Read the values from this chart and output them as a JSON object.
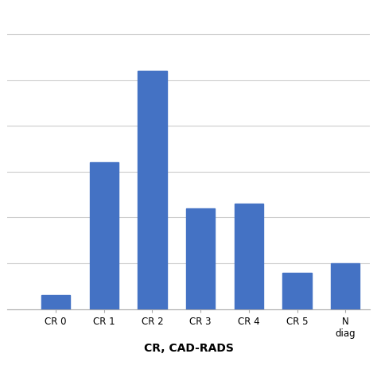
{
  "categories": [
    "CR 0",
    "CR 1",
    "CR 2",
    "CR 3",
    "CR 4",
    "CR 5",
    "N\ndiag"
  ],
  "values": [
    3,
    32,
    52,
    22,
    23,
    8,
    10
  ],
  "bar_color": "#4472C4",
  "xlabel": "CR, CAD-RADS",
  "xlabel_fontsize": 10,
  "xlabel_fontweight": "bold",
  "ylim": [
    0,
    65
  ],
  "yticks": [
    0,
    10,
    20,
    30,
    40,
    50,
    60
  ],
  "grid_color": "#CCCCCC",
  "background_color": "#FFFFFF",
  "bar_width": 0.6,
  "figsize": [
    4.74,
    4.74
  ],
  "dpi": 100
}
